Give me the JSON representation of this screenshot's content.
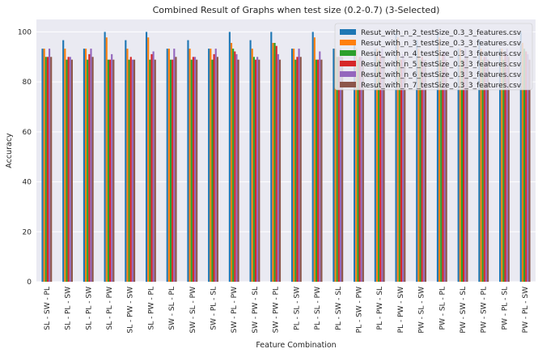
{
  "chart_data": {
    "type": "bar",
    "title": "Combined Result of Graphs when test size (0.2-0.7) (3-Selected)",
    "xlabel": "Feature Combination",
    "ylabel": "Accuracy",
    "ylim": [
      0,
      105
    ],
    "yticks": [
      0,
      20,
      40,
      60,
      80,
      100
    ],
    "grid": true,
    "legend_position": "top-right",
    "categories": [
      "SL - SW - PL",
      "SL - PL - SW",
      "SL - PL - SW",
      "SL - PL - PW",
      "SL - PW - SW",
      "SL - PW - PL",
      "SW - SL - PL",
      "SW - SL - PW",
      "SW - PL - SL",
      "SW - PL - PW",
      "SW - PW - SL",
      "SW - PW - PL",
      "PL - SL - SW",
      "PL - SL - PW",
      "PL - SW - SL",
      "PL - SW - PW",
      "PL - PW - SL",
      "PL - PW - SW",
      "PW - SL - SW",
      "PW - SL - PL",
      "PW - SW - SL",
      "PW - SW - PL",
      "PW - PL - SL",
      "PW - PL - SW"
    ],
    "series": [
      {
        "name": "Resut_with_n_2_testSize_0.3_3_features.csv",
        "color": "#1f77b4",
        "values": [
          93.3,
          96.7,
          93.3,
          100,
          96.7,
          100,
          93.3,
          96.7,
          93.3,
          100,
          96.7,
          100,
          93.3,
          100,
          93.3,
          96.7,
          93.3,
          100,
          96.7,
          100,
          93.3,
          96.7,
          93.3,
          100
        ]
      },
      {
        "name": "Resut_with_n_3_testSize_0.3_3_features.csv",
        "color": "#ff7f0e",
        "values": [
          93.3,
          93.3,
          93.3,
          97.8,
          93.3,
          97.8,
          93.3,
          93.3,
          93.3,
          95.6,
          93.3,
          95.6,
          93.3,
          97.8,
          93.3,
          93.3,
          93.3,
          97.8,
          93.3,
          97.8,
          93.3,
          93.3,
          93.3,
          95.6
        ]
      },
      {
        "name": "Resut_with_n_4_testSize_0.3_3_features.csv",
        "color": "#2ca02c",
        "values": [
          90,
          88.9,
          88.9,
          88.9,
          88.9,
          88.9,
          88.9,
          88.9,
          88.9,
          93.3,
          90,
          95.6,
          88.9,
          88.9,
          90,
          88.9,
          88.9,
          88.9,
          88.9,
          88.9,
          88.9,
          88.9,
          88.9,
          93.3
        ]
      },
      {
        "name": "Resut_with_n_5_testSize_0.3_3_features.csv",
        "color": "#d62728",
        "values": [
          90,
          90,
          91.1,
          88.9,
          90,
          91.1,
          88.9,
          90,
          91.1,
          92.2,
          88.9,
          94.4,
          90,
          88.9,
          90,
          90,
          91.1,
          88.9,
          90,
          91.1,
          88.9,
          90,
          91.1,
          92.2
        ]
      },
      {
        "name": "Resut_with_n_6_testSize_0.3_3_features.csv",
        "color": "#9467bd",
        "values": [
          93.3,
          90,
          93.3,
          91.1,
          88.9,
          92.2,
          93.3,
          90,
          93.3,
          91.1,
          90,
          91.1,
          93.3,
          92.2,
          93.3,
          90,
          93.3,
          91.1,
          88.9,
          92.2,
          93.3,
          90,
          93.3,
          91.1
        ]
      },
      {
        "name": "Resut_with_n_7_testSize_0.3_3_features.csv",
        "color": "#8c564b",
        "values": [
          90,
          88.9,
          90,
          88.9,
          88.9,
          88.9,
          90,
          88.9,
          90,
          88.9,
          88.9,
          88.9,
          90,
          88.9,
          90,
          88.9,
          90,
          88.9,
          88.9,
          88.9,
          90,
          88.9,
          90,
          88.9
        ]
      }
    ]
  }
}
